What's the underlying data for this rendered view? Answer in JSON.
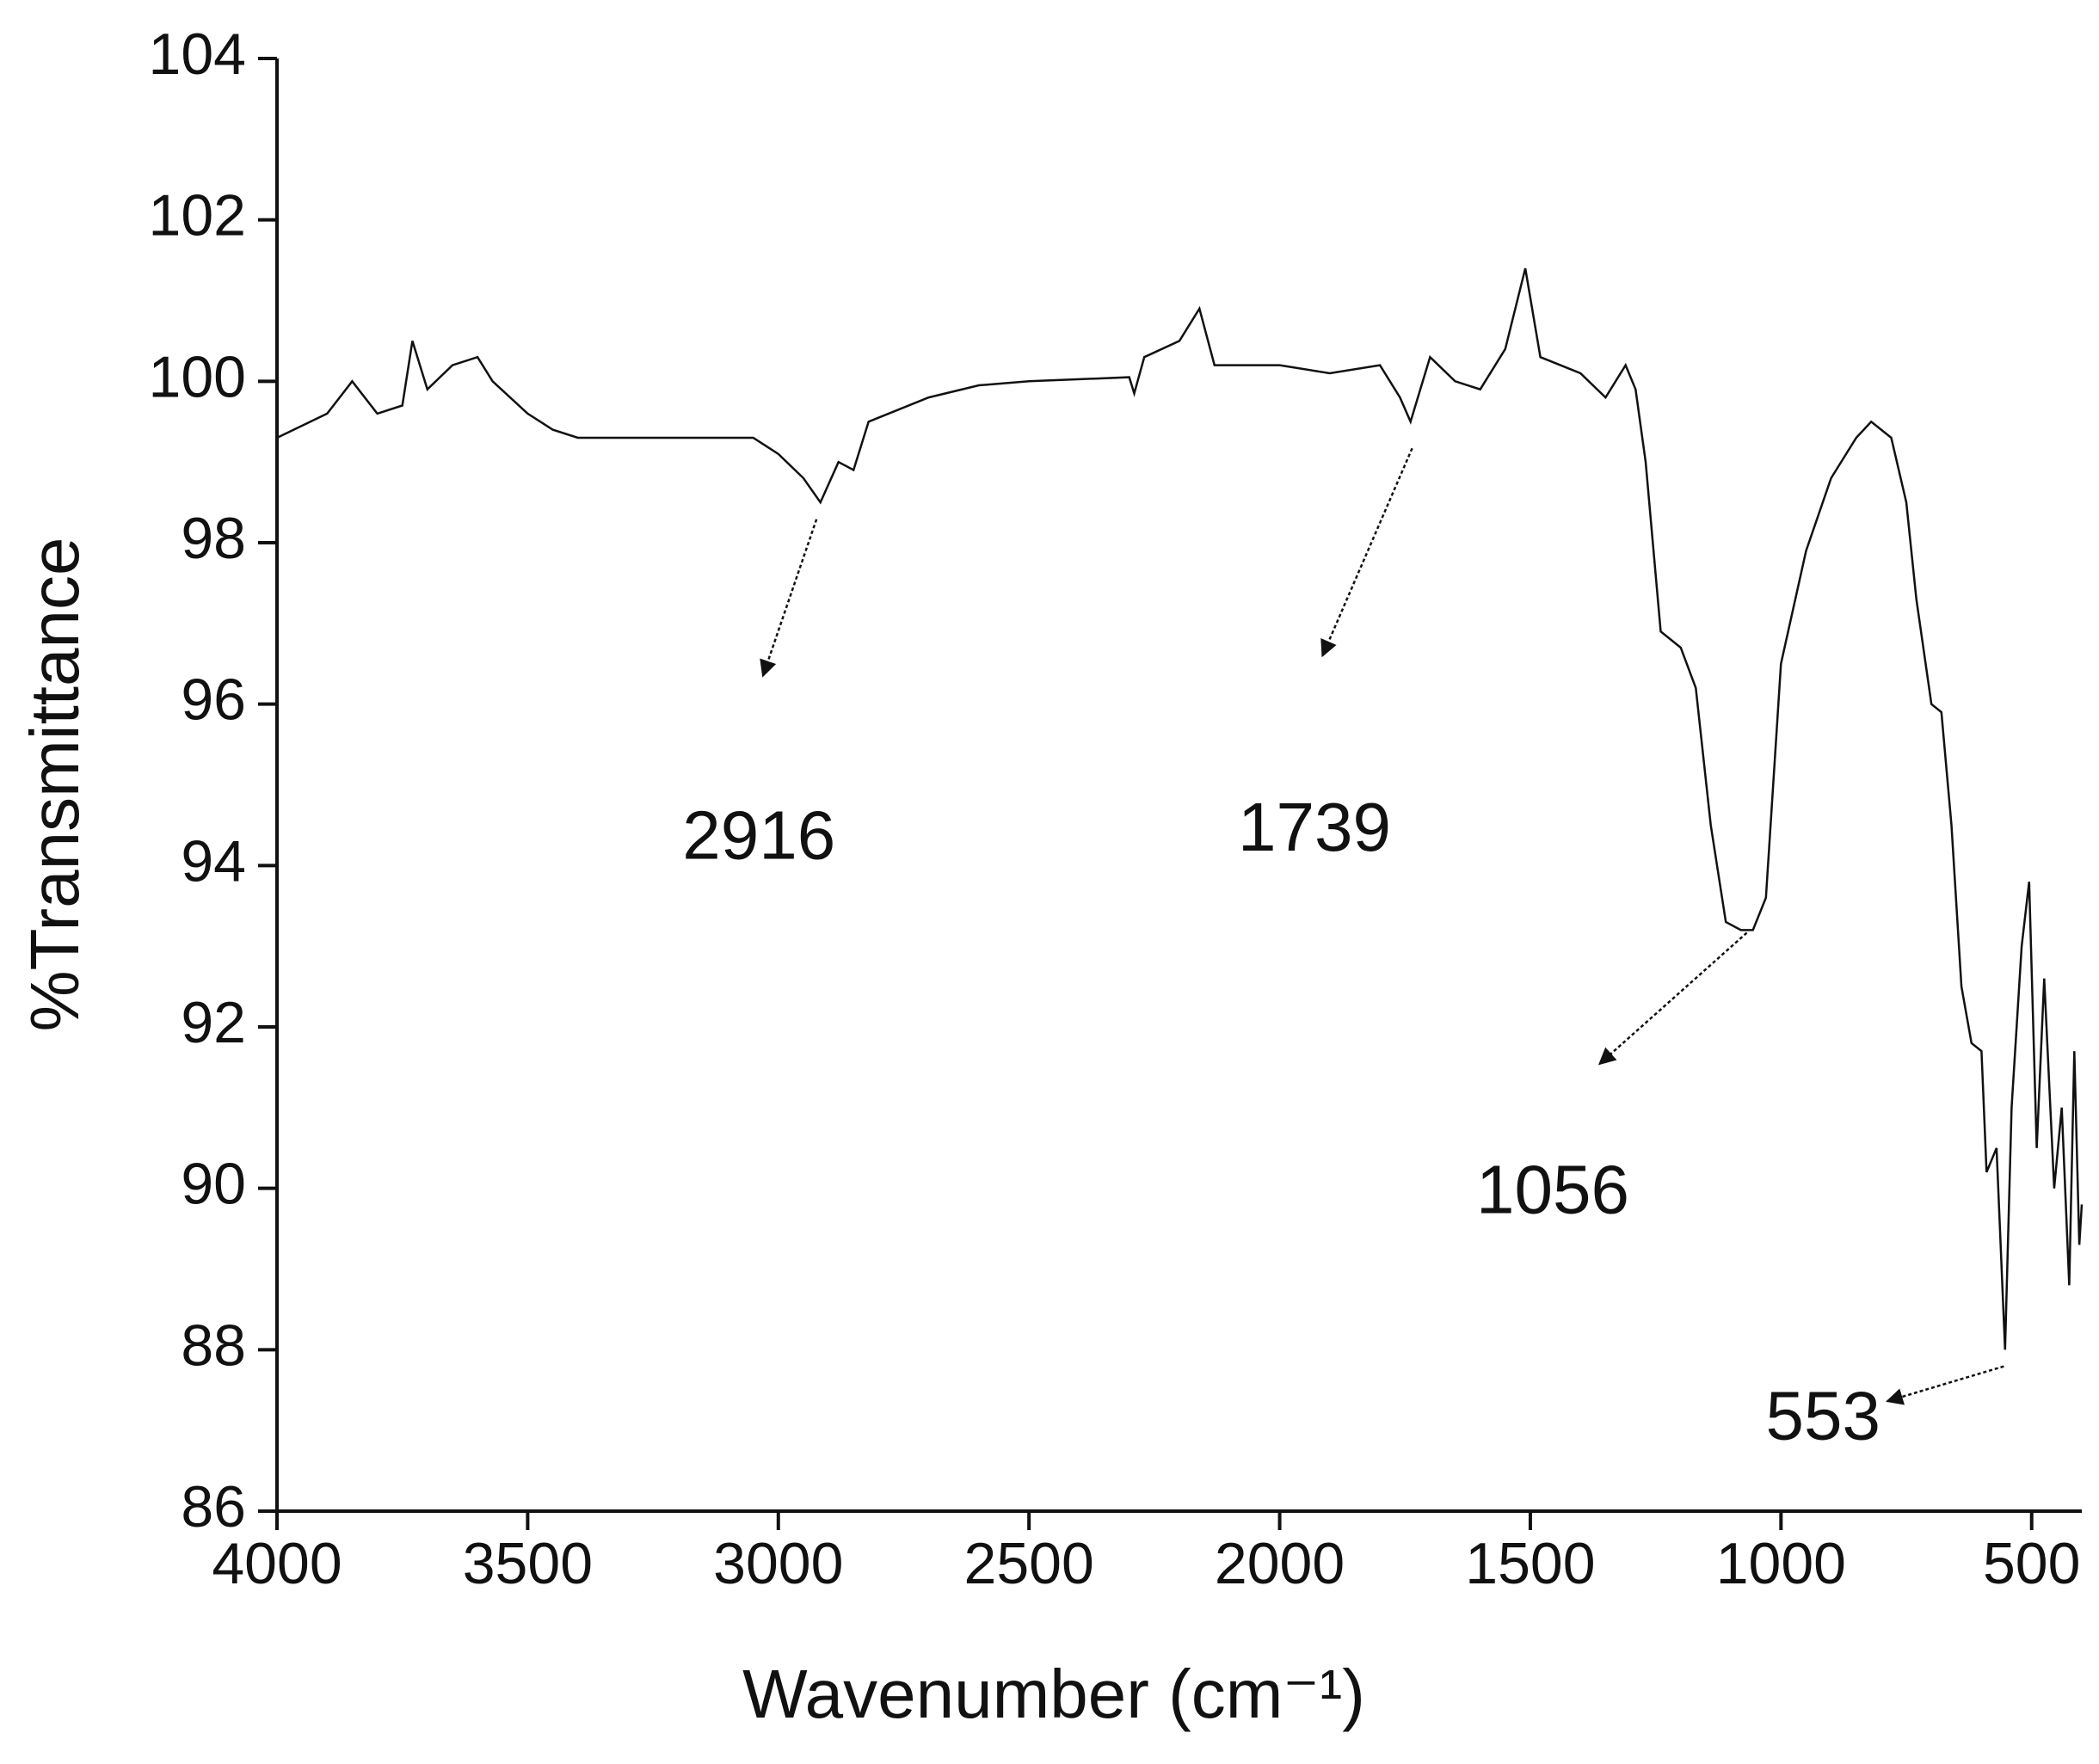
{
  "chart_data": {
    "type": "line",
    "x_label": "Wavenumber (cm⁻¹)",
    "y_label": "%Transmittance",
    "color": "#111111",
    "xlim": [
      4000,
      400
    ],
    "ylim": [
      86,
      104
    ],
    "xticks": [
      4000,
      3500,
      3000,
      2500,
      2000,
      1500,
      1000,
      500
    ],
    "yticks": [
      86,
      88,
      90,
      92,
      94,
      96,
      98,
      100,
      102,
      104
    ],
    "x": [
      4000,
      3900,
      3850,
      3800,
      3750,
      3730,
      3700,
      3650,
      3600,
      3570,
      3500,
      3450,
      3400,
      3200,
      3050,
      3000,
      2950,
      2916,
      2880,
      2850,
      2820,
      2700,
      2600,
      2500,
      2300,
      2290,
      2270,
      2200,
      2160,
      2130,
      2000,
      1900,
      1800,
      1760,
      1739,
      1700,
      1650,
      1600,
      1550,
      1510,
      1480,
      1400,
      1350,
      1310,
      1290,
      1270,
      1240,
      1200,
      1170,
      1140,
      1110,
      1080,
      1056,
      1030,
      1000,
      950,
      900,
      850,
      820,
      780,
      750,
      730,
      700,
      680,
      660,
      640,
      620,
      600,
      590,
      570,
      553,
      540,
      520,
      505,
      490,
      475,
      455,
      440,
      425,
      415,
      405,
      400
    ],
    "values": [
      99.3,
      99.6,
      100.0,
      99.6,
      99.7,
      100.5,
      99.9,
      100.2,
      100.3,
      100.0,
      99.6,
      99.4,
      99.3,
      99.3,
      99.3,
      99.1,
      98.8,
      98.5,
      99.0,
      98.9,
      99.5,
      99.8,
      99.95,
      100.0,
      100.05,
      99.85,
      100.3,
      100.5,
      100.9,
      100.2,
      100.2,
      100.1,
      100.2,
      99.8,
      99.5,
      100.3,
      100.0,
      99.9,
      100.4,
      101.4,
      100.3,
      100.1,
      99.8,
      100.2,
      99.9,
      99.0,
      96.9,
      96.7,
      96.2,
      94.5,
      93.3,
      93.2,
      93.2,
      93.6,
      96.5,
      97.9,
      98.8,
      99.3,
      99.5,
      99.3,
      98.5,
      97.3,
      96.0,
      95.9,
      94.5,
      92.5,
      91.8,
      91.7,
      90.2,
      90.5,
      88.0,
      91.0,
      93.0,
      93.8,
      90.5,
      92.6,
      90.0,
      91.0,
      88.8,
      91.7,
      89.3,
      89.8
    ],
    "annotations": [
      "2916",
      "1739",
      "1056",
      "553"
    ]
  }
}
